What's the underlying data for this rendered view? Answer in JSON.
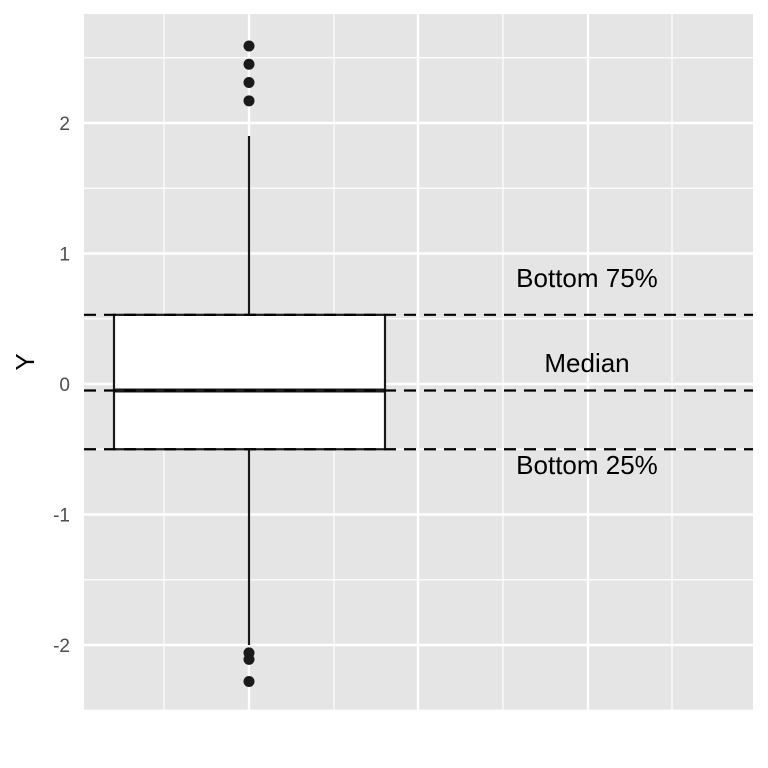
{
  "chart_data": {
    "type": "boxplot",
    "title": "",
    "xlabel": "",
    "ylabel": "Y",
    "ylim": [
      -2.5,
      2.6
    ],
    "y_ticks": [
      -2,
      -1,
      0,
      1,
      2
    ],
    "y_tick_labels": [
      "-2",
      "-1",
      "0",
      "1",
      "2"
    ],
    "grid": true,
    "box": {
      "q1": -0.5,
      "median": -0.05,
      "q3": 0.53,
      "whisker_low": -2.0,
      "whisker_high": 1.9
    },
    "outliers": [
      2.59,
      2.45,
      2.31,
      2.17,
      -2.06,
      -2.11,
      -2.28
    ],
    "reference_lines": [
      {
        "label": "Bottom 75%",
        "value": 0.53,
        "style": "dashed"
      },
      {
        "label": "Median",
        "value": -0.05,
        "style": "dashed"
      },
      {
        "label": "Bottom 25%",
        "value": -0.5,
        "style": "dashed"
      }
    ]
  },
  "colors": {
    "panel_background": "#e5e5e5",
    "grid": "#ffffff",
    "box_fill": "#ffffff",
    "box_stroke": "#1a1a1a",
    "points": "#1a1a1a",
    "reference_line": "#000000"
  }
}
